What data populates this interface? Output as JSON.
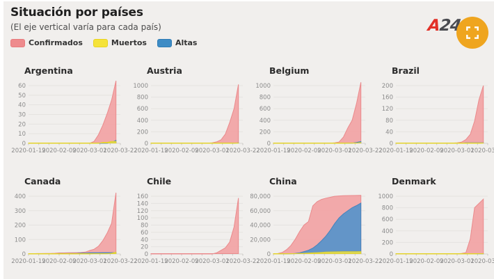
{
  "header": {
    "title": "Situación por países",
    "subtitle": "(El eje vertical varía para cada país)",
    "legend": [
      {
        "label": "Confirmados",
        "color": "#ee8b8d",
        "border": "#e87b7e"
      },
      {
        "label": "Muertos",
        "color": "#f5e33a",
        "border": "#e8d321"
      },
      {
        "label": "Altas",
        "color": "#3e8cc5",
        "border": "#2f7cb5"
      }
    ]
  },
  "branding": {
    "logo_red": "A",
    "logo_dark": "24"
  },
  "controls": {
    "fullscreen_button_color": "#efa51f",
    "fullscreen_icon": "fullscreen-icon"
  },
  "colors": {
    "page_bg": "#f1efed",
    "confirmed_fill": "#f2a3a4",
    "confirmed_stroke": "#ea8a8c",
    "recovered_fill": "#5b93c9",
    "recovered_stroke": "#4583bd",
    "deaths_fill": "#f5e73b",
    "deaths_stroke": "#e3d22a",
    "grid": "#e5e3e0",
    "axis": "#d6d4d1",
    "tick_text": "#8b8b8b"
  },
  "chart_data": {
    "type": "area",
    "note": "small multiples, overlaid areas from zero; vertical axis differs per country",
    "series_names": {
      "confirmed": "Confirmados",
      "deaths": "Muertos",
      "recovered": "Altas"
    },
    "x": {
      "sample_days": [
        0,
        3,
        6,
        9,
        12,
        15,
        18,
        21,
        24,
        27,
        30,
        33,
        36,
        39,
        42,
        45,
        48,
        51,
        54,
        57,
        60
      ],
      "axis_end_day": 63,
      "tick_days": [
        0,
        21,
        42,
        63
      ],
      "tick_labels": [
        "2020-01-19",
        "2020-02-09",
        "2020-03-01",
        "2020-03-22"
      ]
    },
    "countries": [
      {
        "name": "Argentina",
        "yticks": [
          0,
          10,
          20,
          30,
          40,
          50,
          60
        ],
        "confirmed": [
          0,
          0,
          0,
          0,
          0,
          0,
          0,
          0,
          0,
          0,
          0,
          0,
          0,
          0,
          0,
          2,
          9,
          19,
          31,
          45,
          65
        ],
        "deaths": [
          0,
          0,
          0,
          0,
          0,
          0,
          0,
          0,
          0,
          0,
          0,
          0,
          0,
          0,
          0,
          0,
          0,
          1,
          1,
          2,
          2
        ],
        "recovered": [
          0,
          0,
          0,
          0,
          0,
          0,
          0,
          0,
          0,
          0,
          0,
          0,
          0,
          0,
          0,
          0,
          0,
          0,
          0,
          1,
          3
        ]
      },
      {
        "name": "Austria",
        "yticks": [
          0,
          200,
          400,
          600,
          800,
          1000
        ],
        "confirmed": [
          0,
          0,
          0,
          0,
          0,
          0,
          0,
          0,
          0,
          0,
          0,
          0,
          0,
          4,
          10,
          25,
          60,
          160,
          360,
          600,
          1020
        ],
        "deaths": [
          0,
          0,
          0,
          0,
          0,
          0,
          0,
          0,
          0,
          0,
          0,
          0,
          0,
          0,
          0,
          0,
          0,
          0,
          0,
          1,
          3
        ],
        "recovered": [
          0,
          0,
          0,
          0,
          0,
          0,
          0,
          0,
          0,
          0,
          0,
          0,
          0,
          0,
          0,
          0,
          0,
          0,
          2,
          4,
          9
        ]
      },
      {
        "name": "Belgium",
        "yticks": [
          0,
          200,
          400,
          600,
          800,
          1000
        ],
        "confirmed": [
          0,
          0,
          0,
          0,
          0,
          1,
          1,
          1,
          1,
          1,
          1,
          1,
          1,
          2,
          8,
          23,
          109,
          267,
          399,
          689,
          1058
        ],
        "deaths": [
          0,
          0,
          0,
          0,
          0,
          0,
          0,
          0,
          0,
          0,
          0,
          0,
          0,
          0,
          0,
          0,
          0,
          1,
          3,
          4,
          14
        ],
        "recovered": [
          0,
          0,
          0,
          0,
          0,
          0,
          0,
          1,
          1,
          1,
          1,
          1,
          1,
          1,
          1,
          1,
          1,
          2,
          4,
          14,
          31
        ]
      },
      {
        "name": "Brazil",
        "yticks": [
          0,
          40,
          80,
          120,
          160,
          200
        ],
        "confirmed": [
          0,
          0,
          0,
          0,
          0,
          0,
          0,
          0,
          0,
          0,
          0,
          0,
          0,
          1,
          2,
          4,
          13,
          31,
          77,
          151,
          200
        ],
        "deaths": [
          0,
          0,
          0,
          0,
          0,
          0,
          0,
          0,
          0,
          0,
          0,
          0,
          0,
          0,
          0,
          0,
          0,
          0,
          0,
          0,
          1
        ],
        "recovered": [
          0,
          0,
          0,
          0,
          0,
          0,
          0,
          0,
          0,
          0,
          0,
          0,
          0,
          0,
          1,
          1,
          2,
          2,
          2,
          2,
          2
        ]
      },
      {
        "name": "Canada",
        "yticks": [
          0,
          100,
          200,
          300,
          400
        ],
        "confirmed": [
          0,
          2,
          3,
          3,
          4,
          4,
          5,
          7,
          7,
          8,
          8,
          9,
          10,
          13,
          24,
          33,
          54,
          93,
          145,
          212,
          424
        ],
        "deaths": [
          0,
          0,
          0,
          0,
          0,
          0,
          0,
          0,
          0,
          0,
          0,
          0,
          0,
          0,
          0,
          1,
          1,
          1,
          1,
          5,
          12
        ],
        "recovered": [
          0,
          0,
          0,
          0,
          1,
          1,
          2,
          3,
          3,
          3,
          4,
          4,
          6,
          6,
          8,
          8,
          8,
          9,
          9,
          9,
          10
        ]
      },
      {
        "name": "Chile",
        "yticks": [
          0,
          20,
          40,
          60,
          80,
          100,
          120,
          140,
          160
        ],
        "confirmed": [
          0,
          0,
          0,
          0,
          0,
          0,
          0,
          0,
          0,
          0,
          0,
          0,
          0,
          0,
          0,
          3,
          10,
          17,
          33,
          75,
          155
        ],
        "deaths": [
          0,
          0,
          0,
          0,
          0,
          0,
          0,
          0,
          0,
          0,
          0,
          0,
          0,
          0,
          0,
          0,
          0,
          0,
          0,
          0,
          0
        ],
        "recovered": [
          0,
          0,
          0,
          0,
          0,
          0,
          0,
          0,
          0,
          0,
          0,
          0,
          0,
          0,
          0,
          0,
          0,
          0,
          0,
          0,
          0
        ]
      },
      {
        "name": "China",
        "yticks": [
          0,
          20000,
          40000,
          60000,
          80000
        ],
        "comma": true,
        "confirmed": [
          300,
          580,
          2000,
          5970,
          11800,
          20400,
          31200,
          40200,
          44800,
          66600,
          72500,
          75600,
          77300,
          78600,
          79900,
          80400,
          80700,
          80900,
          81000,
          81100,
          81200
        ],
        "deaths": [
          6,
          17,
          56,
          132,
          259,
          426,
          636,
          908,
          1117,
          1524,
          1870,
          2240,
          2600,
          2750,
          2870,
          2980,
          3050,
          3120,
          3170,
          3210,
          3240
        ],
        "recovered": [
          30,
          30,
          49,
          103,
          243,
          632,
          1540,
          3280,
          5150,
          8100,
          12600,
          18300,
          24800,
          32900,
          42100,
          49900,
          55500,
          59900,
          64100,
          67000,
          70500
        ]
      },
      {
        "name": "Denmark",
        "yticks": [
          0,
          200,
          400,
          600,
          800,
          1000
        ],
        "confirmed": [
          0,
          0,
          0,
          0,
          0,
          0,
          0,
          0,
          0,
          0,
          0,
          0,
          0,
          1,
          4,
          10,
          23,
          262,
          801,
          875,
          950
        ],
        "deaths": [
          0,
          0,
          0,
          0,
          0,
          0,
          0,
          0,
          0,
          0,
          0,
          0,
          0,
          0,
          0,
          0,
          0,
          0,
          0,
          2,
          4
        ],
        "recovered": [
          0,
          0,
          0,
          0,
          0,
          0,
          0,
          0,
          0,
          0,
          0,
          0,
          0,
          0,
          1,
          1,
          1,
          1,
          1,
          1,
          1
        ]
      }
    ]
  }
}
